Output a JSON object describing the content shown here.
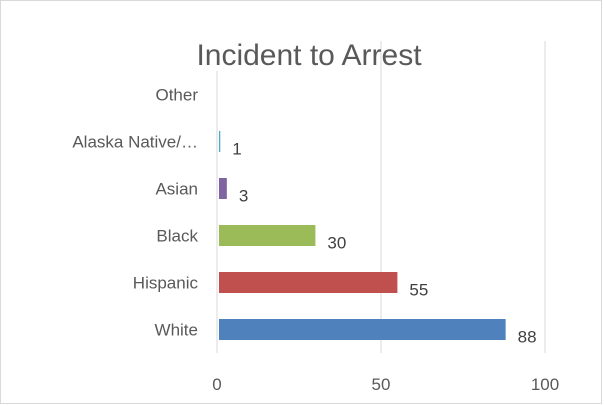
{
  "chart_data": {
    "type": "bar",
    "orientation": "horizontal",
    "title": "Incident to Arrest",
    "categories": [
      "White",
      "Hispanic",
      "Black",
      "Asian",
      "Alaska Native/…",
      "Other"
    ],
    "values": [
      88,
      55,
      30,
      3,
      1,
      null
    ],
    "data_labels": [
      "88",
      "55",
      "30",
      "3",
      "1",
      ""
    ],
    "colors": [
      "#4f81bd",
      "#c0504d",
      "#9bbb59",
      "#8064a2",
      "#4bacc6",
      "#f79646"
    ],
    "xlim": [
      0,
      100
    ],
    "x_ticks": [
      0,
      50,
      100
    ],
    "x_tick_labels": [
      "0",
      "50",
      "100"
    ],
    "grid": true,
    "legend": "none"
  }
}
